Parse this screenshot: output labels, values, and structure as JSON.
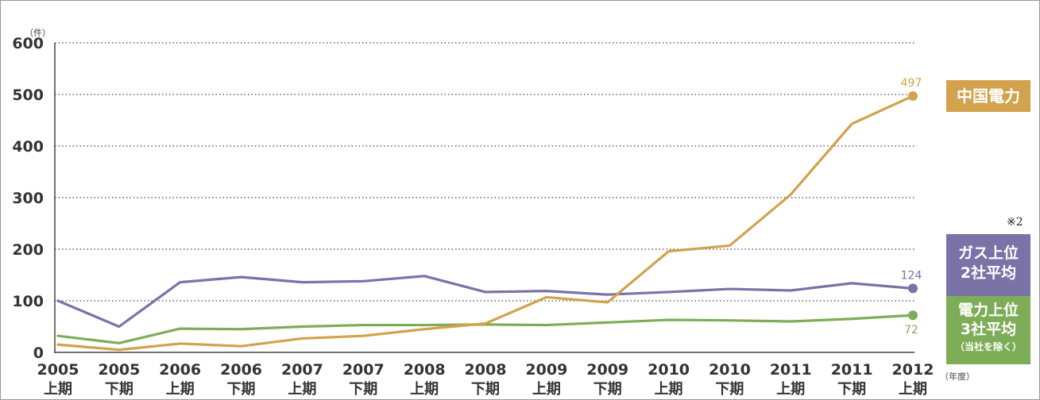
{
  "chart_data": {
    "type": "line",
    "y_unit": "（件）",
    "x_unit": "（年度）",
    "ylim": [
      0,
      600
    ],
    "yticks": [
      0,
      100,
      200,
      300,
      400,
      500,
      600
    ],
    "grid": "horizontal-dotted",
    "categories": [
      {
        "year": "2005",
        "half": "上期"
      },
      {
        "year": "2005",
        "half": "下期"
      },
      {
        "year": "2006",
        "half": "上期"
      },
      {
        "year": "2006",
        "half": "下期"
      },
      {
        "year": "2007",
        "half": "上期"
      },
      {
        "year": "2007",
        "half": "下期"
      },
      {
        "year": "2008",
        "half": "上期"
      },
      {
        "year": "2008",
        "half": "下期"
      },
      {
        "year": "2009",
        "half": "上期"
      },
      {
        "year": "2009",
        "half": "下期"
      },
      {
        "year": "2010",
        "half": "上期"
      },
      {
        "year": "2010",
        "half": "下期"
      },
      {
        "year": "2011",
        "half": "上期"
      },
      {
        "year": "2011",
        "half": "下期"
      },
      {
        "year": "2012",
        "half": "上期"
      }
    ],
    "series": [
      {
        "name": "中国電力",
        "color": "#d2a24c",
        "values": [
          15,
          5,
          17,
          12,
          27,
          32,
          45,
          56,
          107,
          97,
          196,
          207,
          306,
          443,
          497
        ],
        "end_label": "497"
      },
      {
        "name": "ガス上位2社平均",
        "name_lines": [
          "ガス上位",
          "2社平均"
        ],
        "color": "#7b72a8",
        "values": [
          100,
          50,
          136,
          146,
          136,
          138,
          148,
          117,
          119,
          112,
          117,
          123,
          120,
          134,
          124
        ],
        "end_label": "124"
      },
      {
        "name": "電力上位3社平均（当社を除く）",
        "name_lines": [
          "電力上位",
          "3社平均"
        ],
        "name_note": "（当社を除く）",
        "color": "#7ead58",
        "values": [
          32,
          18,
          46,
          45,
          50,
          53,
          53,
          54,
          53,
          58,
          63,
          62,
          60,
          65,
          72
        ],
        "end_label": "72"
      }
    ]
  },
  "note_mark": "※2"
}
